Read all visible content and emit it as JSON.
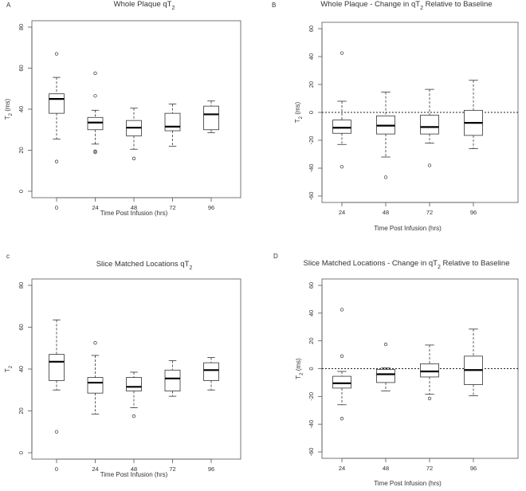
{
  "chart_data": [
    {
      "panel": "A",
      "type": "box",
      "title": "Whole Plaque qT",
      "title_sub": "2",
      "xlabel": "Time Post Infusion (hrs)",
      "ylabel": "T",
      "ylabel_sub": "2",
      "ylabel_unit": " (ms)",
      "ylim": [
        0,
        80
      ],
      "yticks": [
        0,
        20,
        40,
        60,
        80
      ],
      "ytick_labels": [
        "0",
        "20",
        "40",
        "60",
        "80"
      ],
      "zero_line": false,
      "categories": [
        "0",
        "24",
        "48",
        "72",
        "96"
      ],
      "boxes": [
        {
          "whisker_low": 25.5,
          "q1": 38,
          "median": 45,
          "q3": 47.5,
          "whisker_high": 55.5,
          "outliers": [
            67,
            14.5
          ]
        },
        {
          "whisker_low": 23,
          "q1": 30,
          "median": 33.5,
          "q3": 36,
          "whisker_high": 39.5,
          "outliers": [
            57.5,
            46.5,
            19.5,
            19
          ]
        },
        {
          "whisker_low": 20.5,
          "q1": 27,
          "median": 31,
          "q3": 34.5,
          "whisker_high": 40.5,
          "outliers": [
            16
          ]
        },
        {
          "whisker_low": 22,
          "q1": 29.5,
          "median": 31.5,
          "q3": 38,
          "whisker_high": 42.5,
          "outliers": []
        },
        {
          "whisker_low": 28.5,
          "q1": 30,
          "median": 37.5,
          "q3": 41.5,
          "whisker_high": 44,
          "outliers": []
        }
      ]
    },
    {
      "panel": "B",
      "type": "box",
      "title": "Whole Plaque - Change in qT",
      "title_sub": "2",
      "title_suffix": " Relative to Baseline",
      "xlabel": "Time Post Infusion (hrs)",
      "ylabel": "T",
      "ylabel_sub": "2",
      "ylabel_unit": " (ms)",
      "ylim": [
        -60,
        60
      ],
      "yticks": [
        -60,
        -40,
        -20,
        0,
        20,
        40,
        60
      ],
      "ytick_labels": [
        "-60",
        "-40",
        "-20",
        "0",
        "20",
        "40",
        "60"
      ],
      "zero_line": true,
      "categories": [
        "24",
        "48",
        "72",
        "96"
      ],
      "boxes": [
        {
          "whisker_low": -23,
          "q1": -15,
          "median": -11,
          "q3": -5.5,
          "whisker_high": 8,
          "outliers": [
            42.5,
            -39
          ]
        },
        {
          "whisker_low": -32,
          "q1": -15.5,
          "median": -9.5,
          "q3": -2.5,
          "whisker_high": 14.5,
          "outliers": [
            -46.5
          ]
        },
        {
          "whisker_low": -22,
          "q1": -15.5,
          "median": -10.5,
          "q3": -2,
          "whisker_high": 16.5,
          "outliers": [
            -38
          ]
        },
        {
          "whisker_low": -26,
          "q1": -16.5,
          "median": -7.5,
          "q3": 1.5,
          "whisker_high": 23,
          "outliers": []
        }
      ]
    },
    {
      "panel": "c",
      "type": "box",
      "title": "Slice Matched Locations qT",
      "title_sub": "2",
      "xlabel": "Time Post Infusion (hrs)",
      "ylabel": "T",
      "ylabel_sub": "2",
      "ylabel_unit": "",
      "ylim": [
        0,
        80
      ],
      "yticks": [
        0,
        20,
        40,
        60,
        80
      ],
      "ytick_labels": [
        "0",
        "20",
        "40",
        "60",
        "80"
      ],
      "zero_line": false,
      "categories": [
        "0",
        "24",
        "48",
        "72",
        "96"
      ],
      "boxes": [
        {
          "whisker_low": 30,
          "q1": 34.5,
          "median": 43.5,
          "q3": 47,
          "whisker_high": 63.5,
          "outliers": [
            10
          ]
        },
        {
          "whisker_low": 18.5,
          "q1": 28.5,
          "median": 33.5,
          "q3": 36,
          "whisker_high": 46.5,
          "outliers": [
            52.5
          ]
        },
        {
          "whisker_low": 21.5,
          "q1": 29.5,
          "median": 31.5,
          "q3": 36,
          "whisker_high": 38.5,
          "outliers": [
            17.5
          ]
        },
        {
          "whisker_low": 27,
          "q1": 29.5,
          "median": 35.5,
          "q3": 39.5,
          "whisker_high": 44,
          "outliers": []
        },
        {
          "whisker_low": 30,
          "q1": 34.5,
          "median": 39.5,
          "q3": 43,
          "whisker_high": 45.5,
          "outliers": []
        }
      ]
    },
    {
      "panel": "D",
      "type": "box",
      "title": "Slice Matched Locations - Change in qT",
      "title_sub": "2",
      "title_suffix": " Relative to Baseline",
      "xlabel": "Time Post Infusion (hrs)",
      "ylabel": "T",
      "ylabel_sub": "2",
      "ylabel_unit": " (ms)",
      "ylim": [
        -60,
        60
      ],
      "yticks": [
        -60,
        -40,
        -20,
        0,
        20,
        40,
        60
      ],
      "ytick_labels": [
        "-60",
        "-40",
        "-20",
        "0",
        "20",
        "40",
        "60"
      ],
      "zero_line": true,
      "categories": [
        "24",
        "48",
        "72",
        "96"
      ],
      "boxes": [
        {
          "whisker_low": -26,
          "q1": -14,
          "median": -10.5,
          "q3": -5.5,
          "whisker_high": -2,
          "outliers": [
            42.5,
            9,
            -36
          ]
        },
        {
          "whisker_low": -16,
          "q1": -10,
          "median": -4,
          "q3": -0.5,
          "whisker_high": 0.5,
          "outliers": [
            17.5
          ]
        },
        {
          "whisker_low": -18.5,
          "q1": -6,
          "median": -2,
          "q3": 3.5,
          "whisker_high": 17,
          "outliers": [
            -21.5
          ]
        },
        {
          "whisker_low": -19.5,
          "q1": -11.5,
          "median": -1,
          "q3": 9,
          "whisker_high": 28.5,
          "outliers": []
        }
      ]
    }
  ]
}
